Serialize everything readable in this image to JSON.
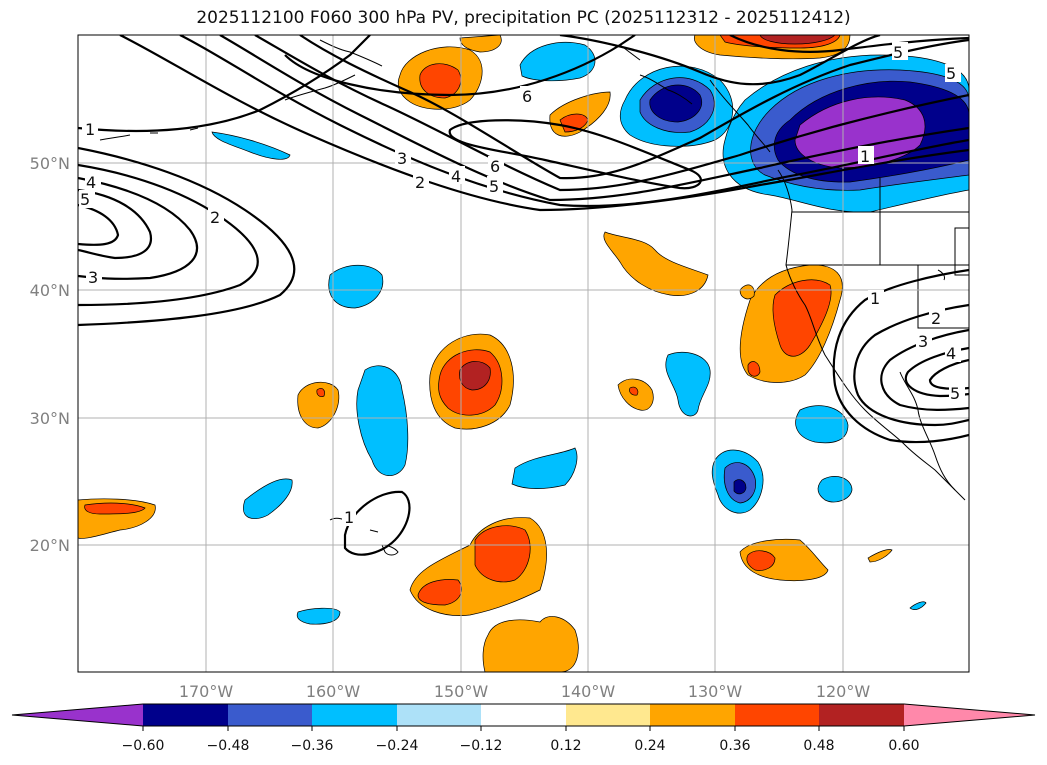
{
  "title": "2025112100 F060 300 hPa PV, precipitation PC (2025112312 - 2025112412)",
  "map": {
    "lon_labels": [
      "170°W",
      "160°W",
      "150°W",
      "140°W",
      "130°W",
      "120°W"
    ],
    "lat_labels": [
      "50°N",
      "40°N",
      "30°N",
      "20°N"
    ],
    "pv_contour_labels": [
      "1",
      "1",
      "2",
      "2",
      "3",
      "3",
      "4",
      "4",
      "5",
      "5",
      "6",
      "6",
      "1",
      "2",
      "3",
      "4",
      "5",
      "1",
      "2",
      "3",
      "4",
      "5"
    ]
  },
  "colorbar": {
    "tick_labels": [
      "−0.60",
      "−0.48",
      "−0.36",
      "−0.24",
      "−0.12",
      "0.12",
      "0.24",
      "0.36",
      "0.48",
      "0.60"
    ],
    "colors": {
      "lt_m060": "#9932CC",
      "m060_m048": "#00008B",
      "m048_m036": "#3A5BCD",
      "m036_m024": "#00BFFF",
      "m024_m012": "#ADE1F8",
      "m012_012": "#FFFFFF",
      "p012_024": "#FFE88F",
      "p024_036": "#FFA500",
      "p036_048": "#FF4500",
      "p048_060": "#B22222",
      "gt_060": "#FF88AA"
    }
  }
}
